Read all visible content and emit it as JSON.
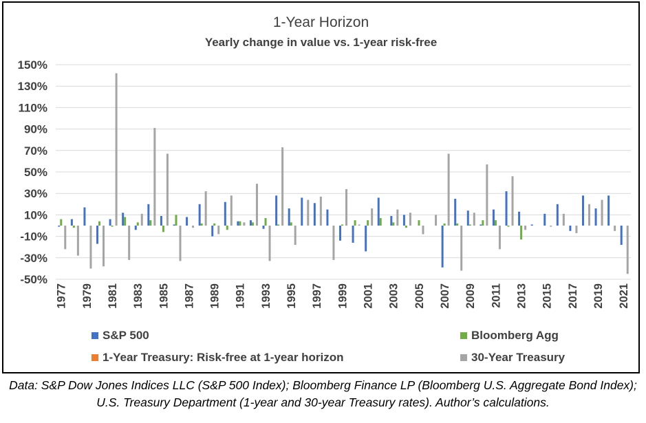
{
  "chart_data": {
    "type": "bar",
    "title": "1-Year Horizon",
    "subtitle": "Yearly change in value vs. 1-year risk-free",
    "categories": [
      "1977",
      "1978",
      "1979",
      "1980",
      "1981",
      "1982",
      "1983",
      "1984",
      "1985",
      "1986",
      "1987",
      "1988",
      "1989",
      "1990",
      "1991",
      "1992",
      "1993",
      "1994",
      "1995",
      "1996",
      "1997",
      "1998",
      "1999",
      "2000",
      "2001",
      "2002",
      "2003",
      "2004",
      "2005",
      "2006",
      "2007",
      "2008",
      "2009",
      "2010",
      "2011",
      "2012",
      "2013",
      "2014",
      "2015",
      "2016",
      "2017",
      "2018",
      "2019",
      "2020",
      "2021"
    ],
    "x_tick_labels": [
      "1977",
      "1979",
      "1981",
      "1983",
      "1985",
      "1987",
      "1989",
      "1991",
      "1993",
      "1995",
      "1997",
      "1999",
      "2001",
      "2003",
      "2005",
      "2007",
      "2009",
      "2011",
      "2013",
      "2015",
      "2017",
      "2019",
      "2021"
    ],
    "y_tick_labels": [
      "150%",
      "130%",
      "110%",
      "90%",
      "70%",
      "50%",
      "30%",
      "10%",
      "-10%",
      "-30%",
      "-50%"
    ],
    "ylim": [
      -50,
      150
    ],
    "y_ticks": [
      150,
      130,
      110,
      90,
      70,
      50,
      30,
      10,
      -10,
      -30,
      -50
    ],
    "grid": true,
    "legend_position": "bottom",
    "series": [
      {
        "name": "S&P 500",
        "color": "#4472C4",
        "values": [
          -1,
          6,
          17,
          -17,
          6,
          12,
          -4,
          20,
          9,
          1,
          8,
          20,
          -10,
          22,
          4,
          5,
          -3,
          28,
          16,
          26,
          21,
          15,
          -14,
          -16,
          -24,
          26,
          9,
          10,
          0,
          0,
          -39,
          25,
          14,
          1,
          15,
          32,
          13,
          1,
          11,
          20,
          -5,
          28,
          16,
          28,
          -18
        ]
      },
      {
        "name": "Bloomberg Agg",
        "color": "#70AD47",
        "values": [
          6,
          -2,
          0,
          4,
          -1,
          8,
          3,
          5,
          -6,
          10,
          0,
          2,
          2,
          -4,
          4,
          3,
          7,
          1,
          3,
          0,
          0,
          0,
          1,
          5,
          5,
          7,
          3,
          -2,
          5,
          0,
          2,
          2,
          1,
          5,
          5,
          -1,
          -13,
          0,
          0,
          0,
          0,
          0,
          0,
          0,
          0
        ]
      },
      {
        "name": "1-Year Treasury: Risk-free at 1-year horizon",
        "color": "#ED7D31",
        "values": [
          0,
          0,
          0,
          0,
          0,
          0,
          0,
          0,
          0,
          0,
          0,
          0,
          0,
          0,
          0,
          0,
          0,
          0,
          0,
          0,
          0,
          0,
          0,
          0,
          0,
          0,
          0,
          0,
          0,
          0,
          0,
          0,
          0,
          0,
          0,
          0,
          0,
          0,
          0,
          0,
          0,
          0,
          0,
          0,
          0
        ]
      },
      {
        "name": "30-Year Treasury",
        "color": "#A5A5A5",
        "values": [
          -22,
          -28,
          -40,
          -38,
          142,
          -32,
          11,
          91,
          67,
          -33,
          -2,
          32,
          -8,
          28,
          3,
          39,
          -33,
          73,
          -18,
          24,
          27,
          -32,
          34,
          1,
          16,
          0,
          15,
          12,
          -8,
          10,
          67,
          -42,
          12,
          57,
          -22,
          46,
          -4,
          0,
          -1,
          11,
          -7,
          20,
          24,
          -5,
          -45
        ]
      }
    ]
  },
  "source_note": "Data: S&P Dow Jones Indices LLC (S&P 500 Index); Bloomberg Finance LP (Bloomberg U.S. Aggregate Bond Index); U.S. Treasury Department (1-year and 30-year Treasury rates). Author’s calculations."
}
